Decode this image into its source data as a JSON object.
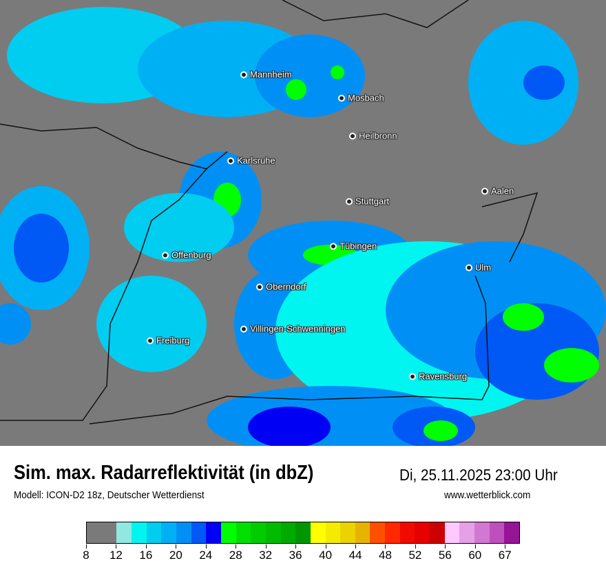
{
  "title": "Sim. max. Radarreflektivität (in dbZ)",
  "datetime": "Di, 25.11.2025 23:00 Uhr",
  "model": "Modell: ICON-D2 18z, Deutscher Wetterdienst",
  "website": "www.wetterblick.com",
  "map": {
    "background": "#7a7a7a",
    "cities": [
      {
        "name": "Mannheim"
      },
      {
        "name": "Mosbach"
      },
      {
        "name": "Heilbronn"
      },
      {
        "name": "Karlsruhe"
      },
      {
        "name": "Aalen"
      },
      {
        "name": "Stuttgart"
      },
      {
        "name": "Tübingen"
      },
      {
        "name": "Offenburg"
      },
      {
        "name": "Ulm"
      },
      {
        "name": "Oberndorf"
      },
      {
        "name": "Villingen-Schwenningen"
      },
      {
        "name": "Freiburg"
      },
      {
        "name": "Ravensburg"
      }
    ]
  },
  "legend": {
    "unit": "dBZ",
    "colors": [
      "#7a7a7a",
      "#7a7a7a",
      "#90e8e0",
      "#00f5f0",
      "#00cdf0",
      "#00b0f5",
      "#0090f5",
      "#0058f5",
      "#0000f5",
      "#00ff00",
      "#00e000",
      "#00cc00",
      "#00bb00",
      "#00aa00",
      "#009600",
      "#ffff00",
      "#f5eb00",
      "#ebd200",
      "#e6b400",
      "#ff5000",
      "#ff2800",
      "#f00a00",
      "#e60000",
      "#cc0000",
      "#ffc8ff",
      "#e6a0e6",
      "#d278d2",
      "#be50be",
      "#961496"
    ],
    "ticks": [
      "8",
      "12",
      "16",
      "20",
      "24",
      "28",
      "32",
      "36",
      "40",
      "44",
      "48",
      "52",
      "56",
      "60",
      "67"
    ]
  }
}
